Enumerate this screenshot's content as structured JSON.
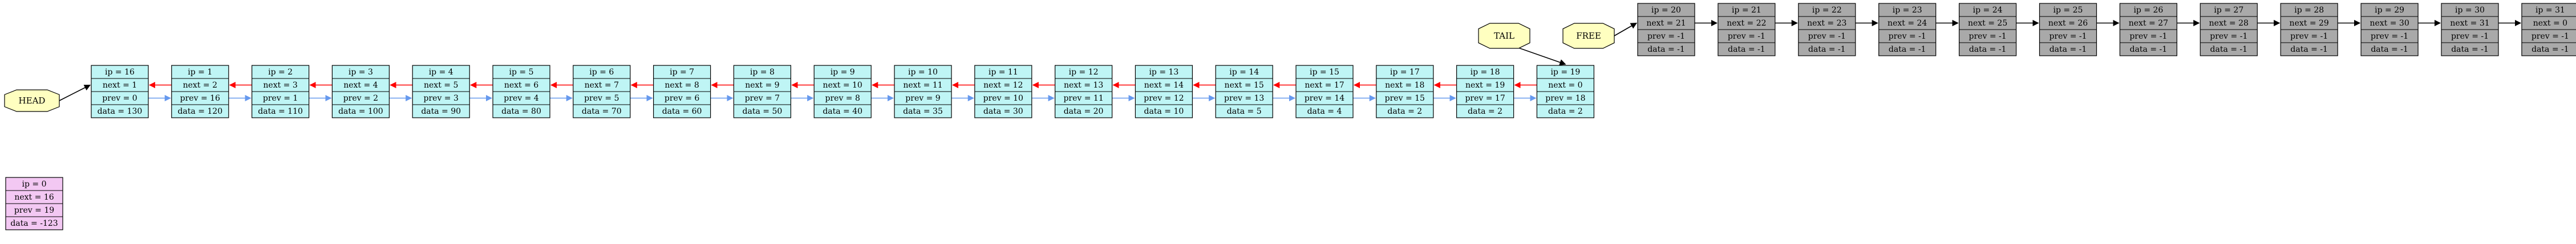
{
  "colors": {
    "active_fill": "#bff5f5",
    "free_fill": "#a9a9a9",
    "sentinel_fill": "#f3c8f3",
    "label_fill": "#ffffc0",
    "next_arrow": "#ff0000",
    "prev_arrow": "#6699ee",
    "link_arrow": "#000000"
  },
  "labels": {
    "head": "HEAD",
    "tail": "TAIL",
    "free": "FREE"
  },
  "sentinel": {
    "ip": "ip = 0",
    "next": "next = 16",
    "prev": "prev = 19",
    "data": "data = -123"
  },
  "active_nodes": [
    {
      "ip": "ip = 16",
      "next": "next = 1",
      "prev": "prev = 0",
      "data": "data = 130"
    },
    {
      "ip": "ip = 1",
      "next": "next = 2",
      "prev": "prev = 16",
      "data": "data = 120"
    },
    {
      "ip": "ip = 2",
      "next": "next = 3",
      "prev": "prev = 1",
      "data": "data = 110"
    },
    {
      "ip": "ip = 3",
      "next": "next = 4",
      "prev": "prev = 2",
      "data": "data = 100"
    },
    {
      "ip": "ip = 4",
      "next": "next = 5",
      "prev": "prev = 3",
      "data": "data = 90"
    },
    {
      "ip": "ip = 5",
      "next": "next = 6",
      "prev": "prev = 4",
      "data": "data = 80"
    },
    {
      "ip": "ip = 6",
      "next": "next = 7",
      "prev": "prev = 5",
      "data": "data = 70"
    },
    {
      "ip": "ip = 7",
      "next": "next = 8",
      "prev": "prev = 6",
      "data": "data = 60"
    },
    {
      "ip": "ip = 8",
      "next": "next = 9",
      "prev": "prev = 7",
      "data": "data = 50"
    },
    {
      "ip": "ip = 9",
      "next": "next = 10",
      "prev": "prev = 8",
      "data": "data = 40"
    },
    {
      "ip": "ip = 10",
      "next": "next = 11",
      "prev": "prev = 9",
      "data": "data = 35"
    },
    {
      "ip": "ip = 11",
      "next": "next = 12",
      "prev": "prev = 10",
      "data": "data = 30"
    },
    {
      "ip": "ip = 12",
      "next": "next = 13",
      "prev": "prev = 11",
      "data": "data = 20"
    },
    {
      "ip": "ip = 13",
      "next": "next = 14",
      "prev": "prev = 12",
      "data": "data = 10"
    },
    {
      "ip": "ip = 14",
      "next": "next = 15",
      "prev": "prev = 13",
      "data": "data = 5"
    },
    {
      "ip": "ip = 15",
      "next": "next = 17",
      "prev": "prev = 14",
      "data": "data = 4"
    },
    {
      "ip": "ip = 17",
      "next": "next = 18",
      "prev": "prev = 15",
      "data": "data = 2"
    },
    {
      "ip": "ip = 18",
      "next": "next = 19",
      "prev": "prev = 17",
      "data": "data = 2"
    },
    {
      "ip": "ip = 19",
      "next": "next = 0",
      "prev": "prev = 18",
      "data": "data = 2"
    }
  ],
  "free_nodes": [
    {
      "ip": "ip = 20",
      "next": "next = 21",
      "prev": "prev = -1",
      "data": "data = -1"
    },
    {
      "ip": "ip = 21",
      "next": "next = 22",
      "prev": "prev = -1",
      "data": "data = -1"
    },
    {
      "ip": "ip = 22",
      "next": "next = 23",
      "prev": "prev = -1",
      "data": "data = -1"
    },
    {
      "ip": "ip = 23",
      "next": "next = 24",
      "prev": "prev = -1",
      "data": "data = -1"
    },
    {
      "ip": "ip = 24",
      "next": "next = 25",
      "prev": "prev = -1",
      "data": "data = -1"
    },
    {
      "ip": "ip = 25",
      "next": "next = 26",
      "prev": "prev = -1",
      "data": "data = -1"
    },
    {
      "ip": "ip = 26",
      "next": "next = 27",
      "prev": "prev = -1",
      "data": "data = -1"
    },
    {
      "ip": "ip = 27",
      "next": "next = 28",
      "prev": "prev = -1",
      "data": "data = -1"
    },
    {
      "ip": "ip = 28",
      "next": "next = 29",
      "prev": "prev = -1",
      "data": "data = -1"
    },
    {
      "ip": "ip = 29",
      "next": "next = 30",
      "prev": "prev = -1",
      "data": "data = -1"
    },
    {
      "ip": "ip = 30",
      "next": "next = 31",
      "prev": "prev = -1",
      "data": "data = -1"
    },
    {
      "ip": "ip = 31",
      "next": "next = 0",
      "prev": "prev = -1",
      "data": "data = -1"
    }
  ]
}
